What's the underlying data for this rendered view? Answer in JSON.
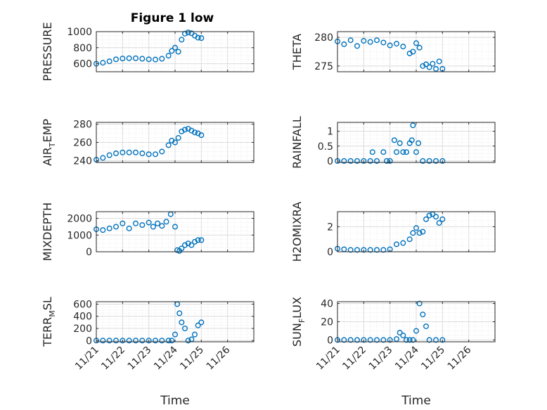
{
  "title": "Figure 1 low",
  "colors": {
    "marker": "#0072BD",
    "axes": "#262626",
    "grid": "#dcdcdc",
    "background": "#ffffff"
  },
  "x_ticks": [
    "11/21",
    "11/22",
    "11/23",
    "11/24",
    "11/25",
    "11/26"
  ],
  "chart_data": [
    {
      "type": "scatter",
      "ylabel_main": "PRESSURE",
      "ylabel_sub": "",
      "ylabel_tail": "",
      "xlabel": "",
      "ylim": [
        500,
        1000
      ],
      "yticks": [
        600,
        800,
        1000
      ],
      "grid": true,
      "x": [
        "11/21 00:00",
        "11/21 06:00",
        "11/21 12:00",
        "11/21 18:00",
        "11/22 00:00",
        "11/22 06:00",
        "11/22 12:00",
        "11/22 18:00",
        "11/23 00:00",
        "11/23 06:00",
        "11/23 12:00",
        "11/23 18:00",
        "11/23 21:00",
        "11/24 00:00",
        "11/24 03:00",
        "11/24 06:00",
        "11/24 09:00",
        "11/24 12:00",
        "11/24 15:00",
        "11/24 18:00",
        "11/24 21:00",
        "11/25 00:00"
      ],
      "y": [
        600,
        612,
        630,
        655,
        665,
        668,
        668,
        662,
        655,
        652,
        662,
        700,
        760,
        800,
        750,
        900,
        975,
        990,
        980,
        950,
        925,
        920
      ]
    },
    {
      "type": "scatter",
      "ylabel_main": "THETA",
      "ylabel_sub": "",
      "ylabel_tail": "",
      "xlabel": "",
      "ylim": [
        274,
        281
      ],
      "yticks": [
        275,
        280
      ],
      "grid": true,
      "x": [
        "11/21 00:00",
        "11/21 06:00",
        "11/21 12:00",
        "11/21 18:00",
        "11/22 00:00",
        "11/22 06:00",
        "11/22 12:00",
        "11/22 18:00",
        "11/23 00:00",
        "11/23 06:00",
        "11/23 12:00",
        "11/23 18:00",
        "11/23 21:00",
        "11/24 00:00",
        "11/24 03:00",
        "11/24 06:00",
        "11/24 09:00",
        "11/24 12:00",
        "11/24 15:00",
        "11/24 18:00",
        "11/24 21:00",
        "11/25 00:00"
      ],
      "y": [
        279.3,
        278.8,
        279.5,
        278.5,
        279.4,
        279.2,
        279.5,
        279.1,
        278.6,
        278.9,
        278.4,
        277.2,
        277.5,
        279.0,
        278.2,
        275.0,
        275.3,
        274.8,
        275.4,
        274.5,
        275.8,
        274.5
      ]
    },
    {
      "type": "scatter",
      "ylabel_main": "AIR",
      "ylabel_sub": "T",
      "ylabel_tail": "EMP",
      "xlabel": "",
      "ylim": [
        238,
        282
      ],
      "yticks": [
        240,
        260,
        280
      ],
      "grid": true,
      "x": [
        "11/21 00:00",
        "11/21 06:00",
        "11/21 12:00",
        "11/21 18:00",
        "11/22 00:00",
        "11/22 06:00",
        "11/22 12:00",
        "11/22 18:00",
        "11/23 00:00",
        "11/23 06:00",
        "11/23 12:00",
        "11/23 18:00",
        "11/23 21:00",
        "11/24 00:00",
        "11/24 03:00",
        "11/24 06:00",
        "11/24 09:00",
        "11/24 12:00",
        "11/24 15:00",
        "11/24 18:00",
        "11/24 21:00",
        "11/25 00:00"
      ],
      "y": [
        241,
        243,
        246,
        248,
        249,
        249,
        249,
        248,
        247,
        247,
        250,
        257,
        262,
        260,
        265,
        272,
        274,
        275,
        273,
        271,
        270,
        268
      ]
    },
    {
      "type": "scatter",
      "ylabel_main": "RAINFALL",
      "ylabel_sub": "",
      "ylabel_tail": "",
      "xlabel": "",
      "ylim": [
        -0.05,
        1.3
      ],
      "yticks": [
        0,
        0.5,
        1
      ],
      "grid": true,
      "x": [
        "11/21 00:00",
        "11/21 06:00",
        "11/21 12:00",
        "11/21 18:00",
        "11/22 00:00",
        "11/22 06:00",
        "11/22 08:00",
        "11/22 12:00",
        "11/22 18:00",
        "11/22 21:00",
        "11/23 00:00",
        "11/23 04:00",
        "11/23 06:00",
        "11/23 09:00",
        "11/23 12:00",
        "11/23 15:00",
        "11/23 18:00",
        "11/23 20:00",
        "11/23 21:00",
        "11/24 00:00",
        "11/24 02:00",
        "11/24 06:00",
        "11/24 12:00",
        "11/24 18:00",
        "11/25 00:00"
      ],
      "y": [
        0,
        0,
        0,
        0,
        0,
        0,
        0.3,
        0,
        0.3,
        0,
        0,
        0.7,
        0.3,
        0.6,
        0.3,
        0.3,
        0.6,
        0.7,
        1.2,
        0.3,
        0.6,
        0,
        0,
        0,
        0
      ]
    },
    {
      "type": "scatter",
      "ylabel_main": "MIXDEPTH",
      "ylabel_sub": "",
      "ylabel_tail": "",
      "xlabel": "",
      "ylim": [
        0,
        2400
      ],
      "yticks": [
        0,
        1000,
        2000
      ],
      "grid": true,
      "x": [
        "11/21 00:00",
        "11/21 06:00",
        "11/21 12:00",
        "11/21 18:00",
        "11/22 00:00",
        "11/22 06:00",
        "11/22 12:00",
        "11/22 18:00",
        "11/23 00:00",
        "11/23 04:00",
        "11/23 08:00",
        "11/23 12:00",
        "11/23 16:00",
        "11/23 20:00",
        "11/24 00:00",
        "11/24 02:00",
        "11/24 04:00",
        "11/24 06:00",
        "11/24 09:00",
        "11/24 12:00",
        "11/24 15:00",
        "11/24 18:00",
        "11/24 21:00",
        "11/25 00:00"
      ],
      "y": [
        1350,
        1300,
        1400,
        1500,
        1700,
        1400,
        1700,
        1600,
        1750,
        1500,
        1700,
        1550,
        1800,
        2250,
        1500,
        100,
        50,
        200,
        400,
        500,
        400,
        600,
        700,
        700
      ]
    },
    {
      "type": "scatter",
      "ylabel_main": "H2OMIXRA",
      "ylabel_sub": "",
      "ylabel_tail": "",
      "xlabel": "",
      "ylim": [
        0,
        3.2
      ],
      "yticks": [
        0,
        2
      ],
      "grid": true,
      "x": [
        "11/21 00:00",
        "11/21 06:00",
        "11/21 12:00",
        "11/21 18:00",
        "11/22 00:00",
        "11/22 06:00",
        "11/22 12:00",
        "11/22 18:00",
        "11/23 00:00",
        "11/23 06:00",
        "11/23 12:00",
        "11/23 18:00",
        "11/23 21:00",
        "11/24 00:00",
        "11/24 03:00",
        "11/24 06:00",
        "11/24 09:00",
        "11/24 12:00",
        "11/24 15:00",
        "11/24 18:00",
        "11/24 21:00",
        "11/25 00:00"
      ],
      "y": [
        0.25,
        0.2,
        0.15,
        0.15,
        0.15,
        0.15,
        0.15,
        0.15,
        0.2,
        0.6,
        0.7,
        1.0,
        1.5,
        1.9,
        1.5,
        1.6,
        2.6,
        2.9,
        3.0,
        2.8,
        2.3,
        2.6
      ]
    },
    {
      "type": "scatter",
      "ylabel_main": "TERR",
      "ylabel_sub": "M",
      "ylabel_tail": "SL",
      "xlabel": "Time",
      "ylim": [
        -20,
        640
      ],
      "yticks": [
        0,
        200,
        400,
        600
      ],
      "grid": true,
      "x": [
        "11/21 00:00",
        "11/21 06:00",
        "11/21 12:00",
        "11/21 18:00",
        "11/22 00:00",
        "11/22 06:00",
        "11/22 12:00",
        "11/22 18:00",
        "11/23 00:00",
        "11/23 06:00",
        "11/23 12:00",
        "11/23 18:00",
        "11/23 21:00",
        "11/24 00:00",
        "11/24 02:00",
        "11/24 04:00",
        "11/24 06:00",
        "11/24 09:00",
        "11/24 12:00",
        "11/24 15:00",
        "11/24 18:00",
        "11/24 21:00",
        "11/25 00:00"
      ],
      "y": [
        0,
        0,
        0,
        0,
        0,
        0,
        0,
        0,
        0,
        0,
        0,
        0,
        0,
        100,
        600,
        450,
        300,
        200,
        0,
        20,
        100,
        250,
        300
      ]
    },
    {
      "type": "scatter",
      "ylabel_main": "SUN",
      "ylabel_sub": "F",
      "ylabel_tail": "LUX",
      "xlabel": "Time",
      "ylim": [
        -2,
        42
      ],
      "yticks": [
        0,
        20,
        40
      ],
      "grid": true,
      "x": [
        "11/21 00:00",
        "11/21 06:00",
        "11/21 12:00",
        "11/21 18:00",
        "11/22 00:00",
        "11/22 06:00",
        "11/22 12:00",
        "11/22 18:00",
        "11/23 00:00",
        "11/23 06:00",
        "11/23 09:00",
        "11/23 12:00",
        "11/23 15:00",
        "11/23 18:00",
        "11/23 21:00",
        "11/24 00:00",
        "11/24 03:00",
        "11/24 06:00",
        "11/24 09:00",
        "11/24 12:00",
        "11/24 18:00",
        "11/25 00:00"
      ],
      "y": [
        0,
        0,
        0,
        0,
        0,
        0,
        0,
        0,
        0,
        1,
        8,
        5,
        0,
        0,
        0,
        10,
        40,
        28,
        15,
        0,
        0,
        0
      ]
    }
  ]
}
